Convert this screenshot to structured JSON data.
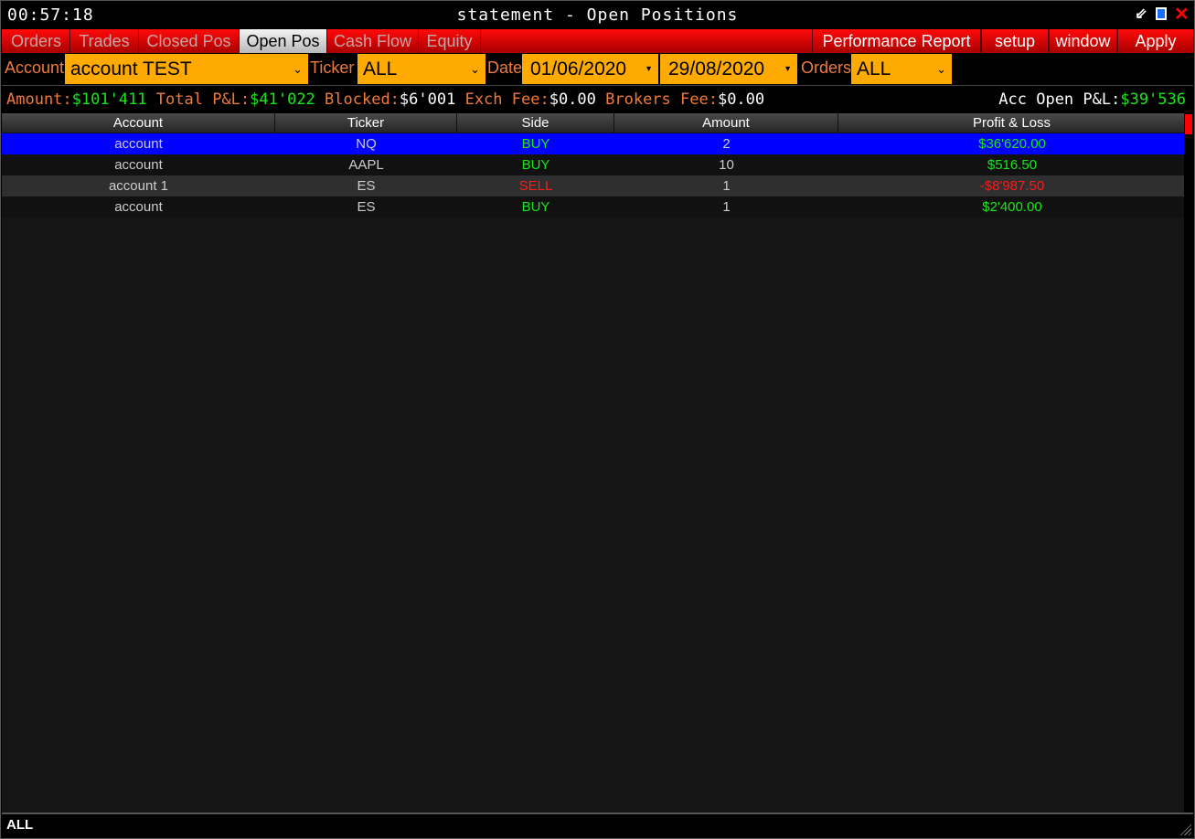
{
  "title": {
    "clock": "00:57:18",
    "text": "statement - Open Positions"
  },
  "tabs": [
    {
      "label": "Orders",
      "active": false
    },
    {
      "label": "Trades",
      "active": false
    },
    {
      "label": "Closed Pos",
      "active": false
    },
    {
      "label": "Open Pos",
      "active": true
    },
    {
      "label": "Cash Flow",
      "active": false
    },
    {
      "label": "Equity",
      "active": false
    }
  ],
  "actions": {
    "performance": "Performance Report",
    "setup": "setup",
    "window": "window",
    "apply": "Apply"
  },
  "filters": {
    "account_label": "Account",
    "account_value": "account TEST",
    "ticker_label": "Ticker",
    "ticker_value": "ALL",
    "date_label": "Date",
    "date_from": "01/06/2020",
    "date_to": "29/08/2020",
    "orders_label": "Orders",
    "orders_value": "ALL"
  },
  "stats": {
    "amount_label": "Amount:",
    "amount": "$101'411",
    "total_label": " Total P&L:",
    "total": "$41'022",
    "blocked_label": " Blocked:",
    "blocked": "$6'001",
    "exch_label": " Exch Fee:",
    "exch": "$0.00",
    "brokers_label": " Brokers Fee:",
    "brokers": "$0.00",
    "acc_label": "Acc Open P&L:",
    "acc": "$39'536"
  },
  "table": {
    "columns": [
      "Account",
      "Ticker",
      "Side",
      "Amount",
      "Profit & Loss"
    ],
    "rows": [
      {
        "account": "account",
        "ticker": "NQ",
        "side": "BUY",
        "amount": "2",
        "pnl": "$36'620.00",
        "selected": true
      },
      {
        "account": "account",
        "ticker": "AAPL",
        "side": "BUY",
        "amount": "10",
        "pnl": "$516.50"
      },
      {
        "account": "account 1",
        "ticker": "ES",
        "side": "SELL",
        "amount": "1",
        "pnl": "-$8'987.50"
      },
      {
        "account": "account",
        "ticker": "ES",
        "side": "BUY",
        "amount": "1",
        "pnl": "$2'400.00"
      }
    ]
  },
  "colors": {
    "buy": "#19e619",
    "sell": "#ff1a1a",
    "selected": "#0000ff",
    "accent": "#ffaa00"
  },
  "status": {
    "text": "ALL"
  }
}
